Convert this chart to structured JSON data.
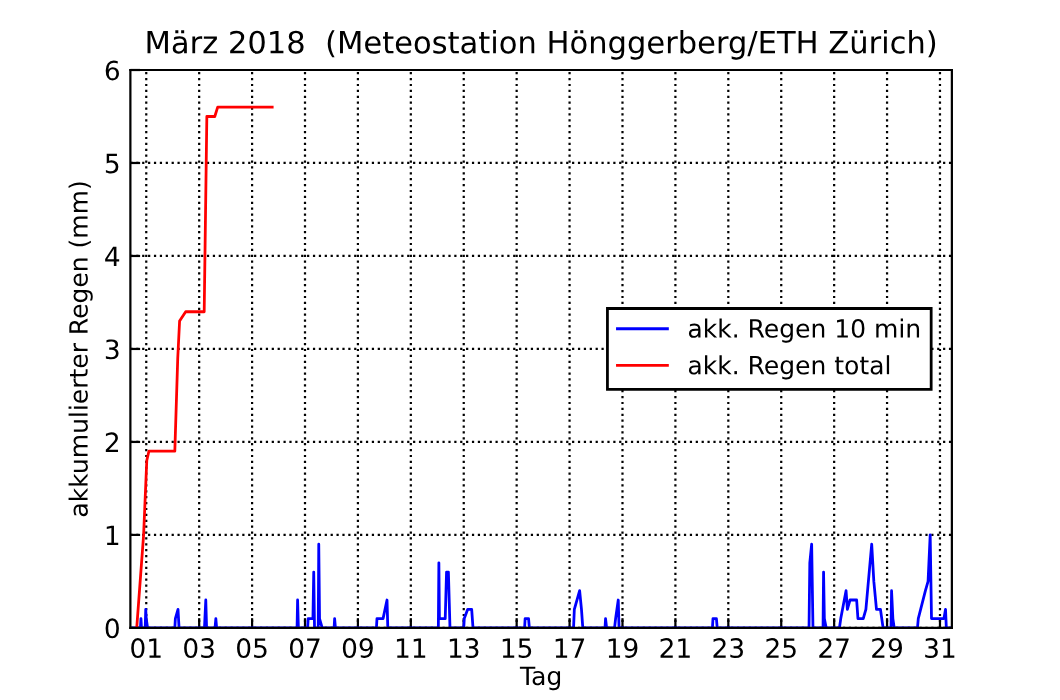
{
  "chart_data": {
    "type": "line",
    "title": "März 2018  (Meteostation Hönggerberg/ETH Zürich)",
    "xlabel": "Tag",
    "ylabel": "akkumulierter Regen (mm)",
    "xlim": [
      0.4,
      31.45
    ],
    "ylim": [
      0,
      6
    ],
    "xticks": [
      {
        "value": 1,
        "label": "01"
      },
      {
        "value": 3,
        "label": "03"
      },
      {
        "value": 5,
        "label": "05"
      },
      {
        "value": 7,
        "label": "07"
      },
      {
        "value": 9,
        "label": "09"
      },
      11,
      13,
      15,
      17,
      19,
      21,
      23,
      25,
      27,
      29,
      31
    ],
    "yticks": [
      0,
      1,
      2,
      3,
      4,
      5,
      6
    ],
    "grid": true,
    "legend": "right",
    "line_style": "solid",
    "series": [
      {
        "name": "akk. Regen 10 min",
        "color": "#0000ff",
        "x": [
          0.5,
          0.78,
          0.8,
          0.82,
          0.96,
          0.98,
          1.0,
          1.05,
          2.08,
          2.1,
          2.2,
          2.24,
          3.2,
          3.25,
          3.28,
          3.6,
          3.63,
          3.66,
          6.7,
          6.72,
          6.75,
          7.1,
          7.12,
          7.3,
          7.33,
          7.36,
          7.5,
          7.52,
          7.55,
          7.65,
          8.1,
          8.12,
          8.15,
          9.7,
          9.72,
          9.95,
          10.1,
          10.13,
          12.04,
          12.06,
          12.08,
          12.3,
          12.35,
          12.42,
          12.48,
          13.0,
          13.02,
          13.15,
          13.3,
          13.35,
          15.3,
          15.32,
          15.45,
          15.48,
          17.15,
          17.18,
          17.38,
          17.45,
          17.5,
          18.34,
          18.36,
          18.4,
          18.7,
          18.74,
          18.84,
          18.87,
          22.4,
          22.42,
          22.55,
          22.58,
          26.05,
          26.08,
          26.15,
          26.2,
          26.58,
          26.6,
          26.63,
          26.7,
          27.2,
          27.25,
          27.45,
          27.5,
          27.6,
          27.85,
          27.9,
          28.1,
          28.2,
          28.42,
          28.5,
          28.6,
          28.75,
          28.8,
          28.85,
          29.15,
          29.17,
          29.22,
          29.27,
          30.15,
          30.18,
          30.45,
          30.55,
          30.63,
          30.68,
          31.15,
          31.21,
          31.24,
          31.45
        ],
        "values": [
          0,
          0,
          0.1,
          0,
          0,
          0.2,
          0.1,
          0,
          0,
          0.1,
          0.2,
          0,
          0,
          0.3,
          0,
          0,
          0.1,
          0,
          0,
          0.3,
          0,
          0,
          0.1,
          0.1,
          0.6,
          0,
          0,
          0.9,
          0.1,
          0,
          0,
          0.1,
          0,
          0,
          0.1,
          0.1,
          0.3,
          0,
          0,
          0.7,
          0.1,
          0.1,
          0.6,
          0.6,
          0,
          0,
          0.1,
          0.2,
          0.2,
          0,
          0,
          0.1,
          0.1,
          0,
          0,
          0.2,
          0.4,
          0.2,
          0,
          0,
          0.1,
          0,
          0,
          0.1,
          0.3,
          0,
          0,
          0.1,
          0.1,
          0,
          0,
          0.7,
          0.9,
          0,
          0,
          0.6,
          0.1,
          0,
          0,
          0.1,
          0.4,
          0.2,
          0.3,
          0.3,
          0.1,
          0.1,
          0.2,
          0.9,
          0.5,
          0.2,
          0.2,
          0.1,
          0,
          0,
          0.4,
          0.1,
          0,
          0,
          0.1,
          0.4,
          0.5,
          1.0,
          0.1,
          0.1,
          0.2,
          0,
          0
        ]
      },
      {
        "name": "akk. Regen total",
        "color": "#ff0000",
        "x": [
          0.64,
          0.9,
          1.02,
          1.1,
          2.08,
          2.19,
          2.26,
          2.49,
          3.19,
          3.29,
          3.59,
          3.7,
          5.76
        ],
        "values": [
          0,
          1.0,
          1.8,
          1.9,
          1.9,
          2.9,
          3.3,
          3.4,
          3.4,
          5.5,
          5.5,
          5.6,
          5.6
        ]
      }
    ]
  }
}
